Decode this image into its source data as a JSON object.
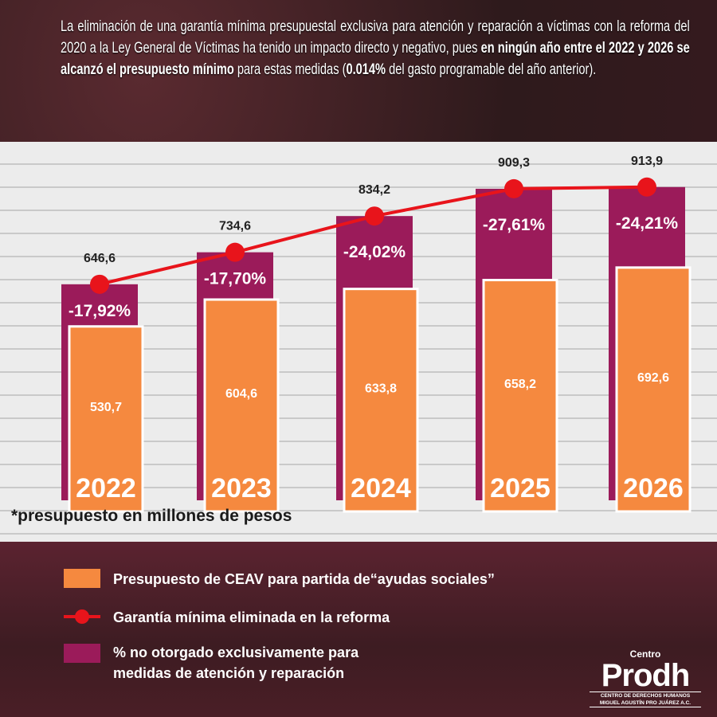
{
  "intro": {
    "part1": "La eliminación de una garantía mínima presupuestal exclusiva para atención y reparación a víctimas con la reforma del 2020 a la Ley General de Víctimas ha tenido un impacto directo y negativo, pues ",
    "bold1": "en ningún año entre el 2022 y 2026 se alcanzó el presupuesto mínimo",
    "part2": " para estas medidas (",
    "bold2": "0.014%",
    "part3": " del gasto programable del año anterior)."
  },
  "chart_data": {
    "type": "bar",
    "categories": [
      "2022",
      "2023",
      "2024",
      "2025",
      "2026"
    ],
    "series": [
      {
        "name": "Presupuesto de CEAV para partida de“ayudas sociales”",
        "type": "bar",
        "color": "#f5893f",
        "values": [
          530.7,
          604.6,
          633.8,
          658.2,
          692.6
        ],
        "labels": [
          "530,7",
          "604,6",
          "633,8",
          "658,2",
          "692,6"
        ]
      },
      {
        "name": "Garantía mínima eliminada en la reforma",
        "type": "line",
        "color": "#e8141b",
        "values": [
          646.6,
          734.6,
          834.2,
          909.3,
          913.9
        ],
        "labels": [
          "646,6",
          "734,6",
          "834,2",
          "909,3",
          "913,9"
        ]
      },
      {
        "name": "% no otorgado exclusivamente para medidas de atención y reparación",
        "type": "bar",
        "color": "#9b1b5a",
        "values": [
          -17.92,
          -17.7,
          -24.02,
          -27.61,
          -24.21
        ],
        "labels": [
          "-17,92%",
          "-17,70%",
          "-24,02%",
          "-27,61%",
          "-24,21%"
        ]
      }
    ],
    "ylim": [
      0,
      1000
    ],
    "grid": false,
    "legend": "bottom",
    "footnote": "*presupuesto en millones de pesos"
  },
  "legend": [
    {
      "label": "Presupuesto de CEAV para partida de“ayudas sociales”",
      "color": "#f5893f"
    },
    {
      "label": "Garantía mínima eliminada en la reforma",
      "color": "#e8141b"
    },
    {
      "label": "% no otorgado exclusivamente para\nmedidas de atención y reparación",
      "color": "#9b1b5a"
    }
  ],
  "logo": {
    "centro": "Centro",
    "name": "Prodh",
    "sub1": "CENTRO DE DERECHOS HUMANOS",
    "sub2": "MIGUEL AGUSTÍN PRO JUÁREZ A.C."
  }
}
